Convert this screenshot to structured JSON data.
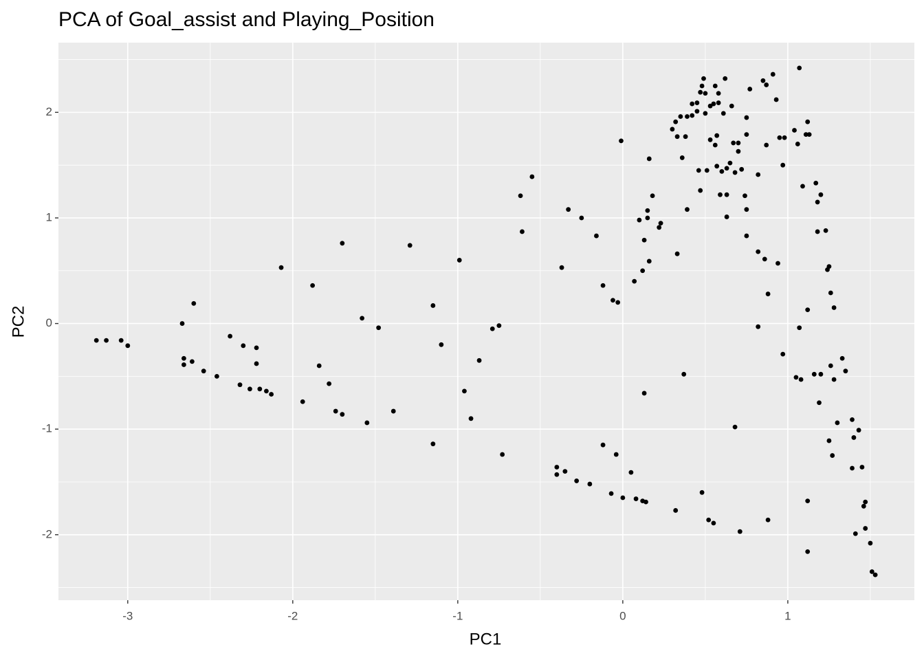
{
  "chart_data": {
    "type": "scatter",
    "title": "PCA of Goal_assist and Playing_Position",
    "xlabel": "PC1",
    "ylabel": "PC2",
    "color": "#000000",
    "xlim": [
      -3.42,
      1.767
    ],
    "ylim": [
      -2.62,
      2.66
    ],
    "xticks": [
      -3,
      -2,
      -1,
      0,
      1
    ],
    "yticks": [
      -2,
      -1,
      0,
      1,
      2
    ],
    "xminor": [
      -2.5,
      -1.5,
      -0.5,
      0.5,
      1.5
    ],
    "yminor": [
      -2.5,
      -1.5,
      -0.5,
      0.5,
      1.5,
      2.5
    ],
    "grid": true,
    "x": [
      -3.19,
      -3.13,
      -3.04,
      -3.0,
      -2.67,
      -2.6,
      -2.66,
      -2.66,
      -2.61,
      -2.54,
      -2.46,
      -2.38,
      -2.32,
      -2.3,
      -2.26,
      -2.22,
      -2.22,
      -2.2,
      -2.16,
      -2.13,
      -2.07,
      -1.94,
      -1.88,
      -1.84,
      -1.78,
      -1.74,
      -1.7,
      -1.7,
      -1.58,
      -1.55,
      -1.48,
      -1.39,
      -1.29,
      -1.15,
      -1.15,
      -1.1,
      -0.99,
      -0.96,
      -0.92,
      -0.87,
      -0.79,
      -0.75,
      -0.73,
      -0.62,
      -0.61,
      -0.55,
      -0.4,
      -0.4,
      -0.37,
      -0.35,
      -0.33,
      -0.28,
      -0.25,
      -0.2,
      -0.16,
      -0.12,
      -0.12,
      -0.07,
      -0.06,
      -0.04,
      -0.03,
      -0.01,
      0.0,
      0.05,
      0.07,
      0.08,
      0.1,
      0.12,
      0.12,
      0.13,
      0.13,
      0.14,
      0.15,
      0.15,
      0.16,
      0.16,
      0.18,
      0.22,
      0.23,
      0.3,
      0.32,
      0.32,
      0.33,
      0.33,
      0.35,
      0.36,
      0.37,
      0.38,
      0.39,
      0.39,
      0.42,
      0.42,
      0.45,
      0.45,
      0.46,
      0.47,
      0.47,
      0.48,
      0.48,
      0.49,
      0.5,
      0.5,
      0.51,
      0.52,
      0.53,
      0.53,
      0.55,
      0.55,
      0.56,
      0.56,
      0.57,
      0.57,
      0.58,
      0.58,
      0.59,
      0.6,
      0.61,
      0.62,
      0.63,
      0.63,
      0.63,
      0.65,
      0.66,
      0.67,
      0.68,
      0.68,
      0.7,
      0.7,
      0.71,
      0.72,
      0.74,
      0.75,
      0.75,
      0.75,
      0.75,
      0.77,
      0.82,
      0.82,
      0.82,
      0.85,
      0.86,
      0.87,
      0.87,
      0.88,
      0.88,
      0.91,
      0.93,
      0.94,
      0.95,
      0.97,
      0.97,
      0.98,
      1.04,
      1.05,
      1.06,
      1.07,
      1.07,
      1.08,
      1.09,
      1.11,
      1.12,
      1.12,
      1.12,
      1.12,
      1.13,
      1.16,
      1.17,
      1.18,
      1.18,
      1.19,
      1.2,
      1.2,
      1.23,
      1.24,
      1.25,
      1.25,
      1.26,
      1.26,
      1.27,
      1.28,
      1.28,
      1.3,
      1.33,
      1.35,
      1.39,
      1.39,
      1.4,
      1.41,
      1.43,
      1.45,
      1.46,
      1.47,
      1.47,
      1.5,
      1.51,
      1.53
    ],
    "values": [
      -0.16,
      -0.16,
      -0.16,
      -0.21,
      0.0,
      0.19,
      -0.33,
      -0.39,
      -0.36,
      -0.45,
      -0.5,
      -0.12,
      -0.58,
      -0.21,
      -0.62,
      -0.23,
      -0.38,
      -0.62,
      -0.64,
      -0.67,
      0.53,
      -0.74,
      0.36,
      -0.4,
      -0.57,
      -0.83,
      -0.86,
      0.76,
      0.05,
      -0.94,
      -0.04,
      -0.83,
      0.74,
      0.17,
      -1.14,
      -0.2,
      0.6,
      -0.64,
      -0.9,
      -0.35,
      -0.05,
      -0.02,
      -1.24,
      1.21,
      0.87,
      1.39,
      -1.36,
      -1.43,
      0.53,
      -1.4,
      1.08,
      -1.49,
      1.0,
      -1.52,
      0.83,
      0.36,
      -1.15,
      -1.61,
      0.22,
      -1.24,
      0.2,
      1.73,
      -1.65,
      -1.41,
      0.4,
      -1.66,
      0.98,
      0.5,
      -1.68,
      -0.66,
      0.79,
      -1.69,
      1.0,
      1.07,
      0.59,
      1.56,
      1.21,
      0.91,
      0.95,
      1.84,
      -1.77,
      1.91,
      1.77,
      0.66,
      1.96,
      1.57,
      -0.48,
      1.77,
      1.08,
      1.96,
      2.08,
      1.97,
      2.01,
      2.09,
      1.45,
      1.26,
      2.19,
      2.25,
      -1.6,
      2.32,
      1.99,
      2.18,
      1.45,
      -1.86,
      2.06,
      1.74,
      2.08,
      -1.89,
      1.69,
      2.25,
      1.78,
      1.49,
      2.09,
      2.18,
      1.22,
      1.44,
      1.99,
      2.32,
      1.47,
      1.01,
      1.22,
      1.52,
      2.06,
      1.71,
      -0.98,
      1.43,
      1.63,
      1.71,
      -1.97,
      1.46,
      1.21,
      1.79,
      1.95,
      1.08,
      0.83,
      2.22,
      0.68,
      1.41,
      -0.03,
      2.3,
      0.61,
      2.26,
      1.69,
      0.28,
      -1.86,
      2.36,
      2.12,
      0.57,
      1.76,
      1.5,
      -0.29,
      1.76,
      1.83,
      -0.51,
      1.7,
      2.42,
      -0.04,
      -0.53,
      1.3,
      1.79,
      1.91,
      -1.68,
      -2.16,
      0.13,
      1.79,
      -0.48,
      1.33,
      0.87,
      1.15,
      -0.75,
      -0.48,
      1.22,
      0.88,
      0.51,
      0.54,
      -1.11,
      -0.4,
      0.29,
      -1.25,
      0.15,
      -0.53,
      -0.94,
      -0.33,
      -0.45,
      -0.91,
      -1.37,
      -1.08,
      -1.99,
      -1.01,
      -1.36,
      -1.73,
      -1.69,
      -1.94,
      -2.08,
      -2.35,
      -2.38
    ]
  }
}
